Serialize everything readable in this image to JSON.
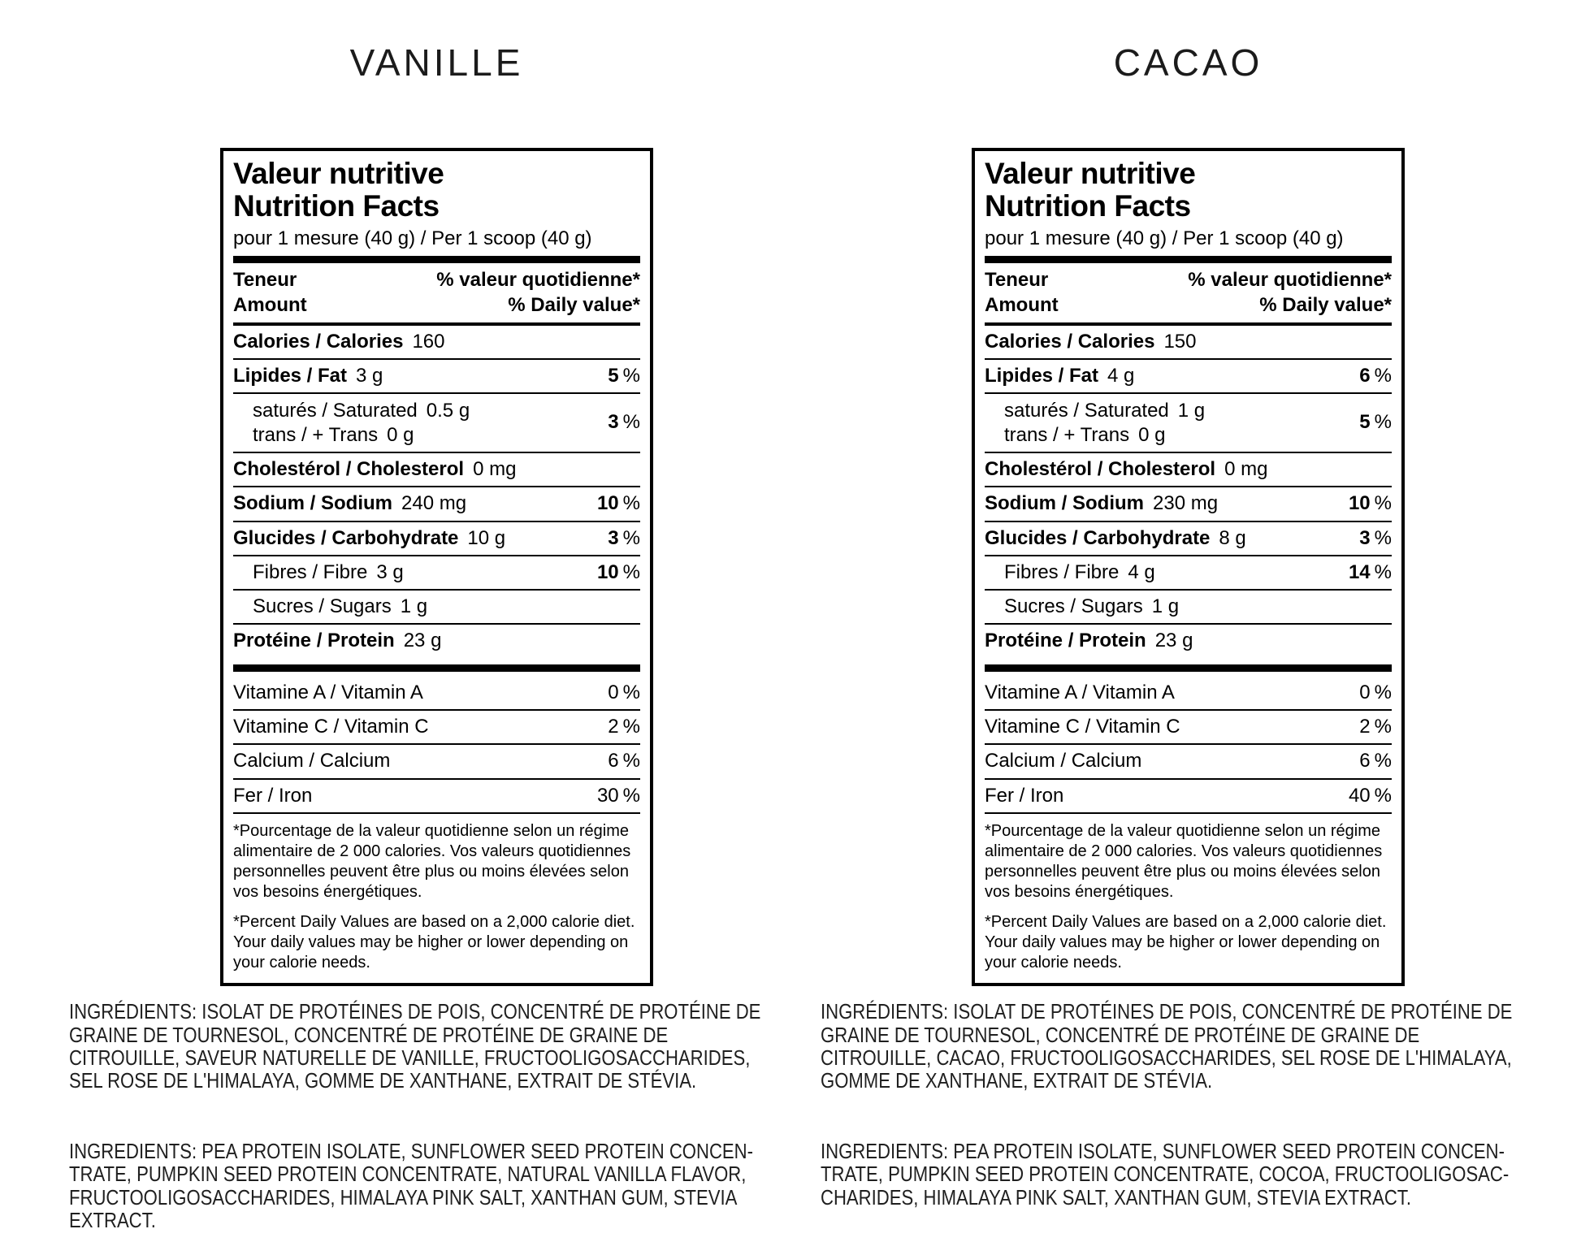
{
  "products": [
    {
      "flavor": "VANILLE",
      "label": {
        "title_fr": "Valeur nutritive",
        "title_en": "Nutrition Facts",
        "serving": "pour 1 mesure (40 g) / Per 1 scoop (40 g)",
        "header": {
          "left_fr": "Teneur",
          "left_en": "Amount",
          "right_fr": "% valeur quotidienne*",
          "right_en": "% Daily value*"
        },
        "rows": {
          "calories": {
            "name": "Calories / Calories",
            "amount": "160",
            "dv": "",
            "pct": ""
          },
          "fat": {
            "name": "Lipides / Fat",
            "amount": "3 g",
            "dv": "5",
            "pct": "%"
          },
          "satfat": {
            "name": "saturés / Saturated",
            "amount": "0.5 g",
            "name2": "trans / + Trans",
            "amount2": "0 g",
            "dv": "3",
            "pct": "%"
          },
          "cholesterol": {
            "name": "Cholestérol / Cholesterol",
            "amount": "0 mg",
            "dv": "",
            "pct": ""
          },
          "sodium": {
            "name": "Sodium / Sodium",
            "amount": "240 mg",
            "dv": "10",
            "pct": "%"
          },
          "carbohydrate": {
            "name": "Glucides / Carbohydrate",
            "amount": "10 g",
            "dv": "3",
            "pct": "%"
          },
          "fibre": {
            "name": "Fibres / Fibre",
            "amount": "3 g",
            "dv": "10",
            "pct": "%"
          },
          "sugars": {
            "name": "Sucres / Sugars",
            "amount": "1 g",
            "dv": "",
            "pct": ""
          },
          "protein": {
            "name": "Protéine / Protein",
            "amount": "23 g",
            "dv": "",
            "pct": ""
          },
          "vitamin_a": {
            "name": "Vitamine A / Vitamin A",
            "amount": "",
            "dv": "0",
            "pct": "%"
          },
          "vitamin_c": {
            "name": "Vitamine C / Vitamin C",
            "amount": "",
            "dv": "2",
            "pct": "%"
          },
          "calcium": {
            "name": "Calcium / Calcium",
            "amount": "",
            "dv": "6",
            "pct": "%"
          },
          "iron": {
            "name": "Fer / Iron",
            "amount": "",
            "dv": "30",
            "pct": "%"
          }
        },
        "footnote_fr": "*Pourcentage de la valeur quotidienne selon un régime alimentaire de 2 000 calories. Vos valeurs quotidiennes personnelles peuvent être plus ou moins élevées selon vos besoins énergétiques.",
        "footnote_en": "*Percent Daily Values are based on a 2,000 calorie diet. Your daily values may be higher or lower depending on your calorie needs."
      },
      "ingredients_fr": "INGRÉDIENTS: ISOLAT DE PROTÉINES DE POIS, CONCENTRÉ DE PROTÉINE DE\nGRAINE DE TOURNESOL, CONCENTRÉ DE PROTÉINE DE GRAINE DE\nCITROUILLE, SAVEUR NATURELLE DE VANILLE, FRUCTOOLIGOSACCHARIDES,\nSEL ROSE DE L'HIMALAYA, GOMME DE XANTHANE, EXTRAIT DE STÉVIA.",
      "ingredients_en": "INGREDIENTS: PEA PROTEIN ISOLATE, SUNFLOWER SEED PROTEIN CONCEN-\nTRATE,  PUMPKIN SEED PROTEIN CONCENTRATE, NATURAL VANILLA FLAVOR,\nFRUCTOOLIGOSACCHARIDES, HIMALAYA PINK SALT, XANTHAN GUM, STEVIA\nEXTRACT."
    },
    {
      "flavor": "CACAO",
      "label": {
        "title_fr": "Valeur nutritive",
        "title_en": "Nutrition Facts",
        "serving": "pour 1 mesure (40 g) / Per 1 scoop (40 g)",
        "header": {
          "left_fr": "Teneur",
          "left_en": "Amount",
          "right_fr": "% valeur quotidienne*",
          "right_en": "% Daily value*"
        },
        "rows": {
          "calories": {
            "name": "Calories / Calories",
            "amount": "150",
            "dv": "",
            "pct": ""
          },
          "fat": {
            "name": "Lipides / Fat",
            "amount": "4 g",
            "dv": "6",
            "pct": "%"
          },
          "satfat": {
            "name": "saturés / Saturated",
            "amount": "1 g",
            "name2": "trans / + Trans",
            "amount2": "0 g",
            "dv": "5",
            "pct": "%"
          },
          "cholesterol": {
            "name": "Cholestérol / Cholesterol",
            "amount": "0 mg",
            "dv": "",
            "pct": ""
          },
          "sodium": {
            "name": "Sodium / Sodium",
            "amount": "230 mg",
            "dv": "10",
            "pct": "%"
          },
          "carbohydrate": {
            "name": "Glucides / Carbohydrate",
            "amount": "8 g",
            "dv": "3",
            "pct": "%"
          },
          "fibre": {
            "name": "Fibres / Fibre",
            "amount": "4 g",
            "dv": "14",
            "pct": "%"
          },
          "sugars": {
            "name": "Sucres / Sugars",
            "amount": "1 g",
            "dv": "",
            "pct": ""
          },
          "protein": {
            "name": "Protéine / Protein",
            "amount": "23 g",
            "dv": "",
            "pct": ""
          },
          "vitamin_a": {
            "name": "Vitamine A / Vitamin A",
            "amount": "",
            "dv": "0",
            "pct": "%"
          },
          "vitamin_c": {
            "name": "Vitamine C / Vitamin C",
            "amount": "",
            "dv": "2",
            "pct": "%"
          },
          "calcium": {
            "name": "Calcium / Calcium",
            "amount": "",
            "dv": "6",
            "pct": "%"
          },
          "iron": {
            "name": "Fer / Iron",
            "amount": "",
            "dv": "40",
            "pct": "%"
          }
        },
        "footnote_fr": "*Pourcentage de la valeur quotidienne selon un régime alimentaire de 2 000 calories. Vos valeurs quotidiennes personnelles peuvent être plus ou moins élevées selon vos besoins énergétiques.",
        "footnote_en": "*Percent Daily Values are based on a 2,000 calorie diet. Your daily values may be higher or lower depending on your calorie needs."
      },
      "ingredients_fr": "INGRÉDIENTS: ISOLAT DE PROTÉINES DE POIS, CONCENTRÉ DE PROTÉINE DE\nGRAINE DE TOURNESOL, CONCENTRÉ DE PROTÉINE DE GRAINE DE\nCITROUILLE, CACAO, FRUCTOOLIGOSACCHARIDES, SEL ROSE DE L'HIMALAYA,\nGOMME DE XANTHANE, EXTRAIT DE STÉVIA.",
      "ingredients_en": "INGREDIENTS: PEA PROTEIN ISOLATE, SUNFLOWER SEED PROTEIN CONCEN-\nTRATE,  PUMPKIN SEED PROTEIN CONCENTRATE, COCOA, FRUCTOOLIGOSAC-\nCHARIDES, HIMALAYA PINK SALT, XANTHAN GUM, STEVIA EXTRACT."
    }
  ]
}
